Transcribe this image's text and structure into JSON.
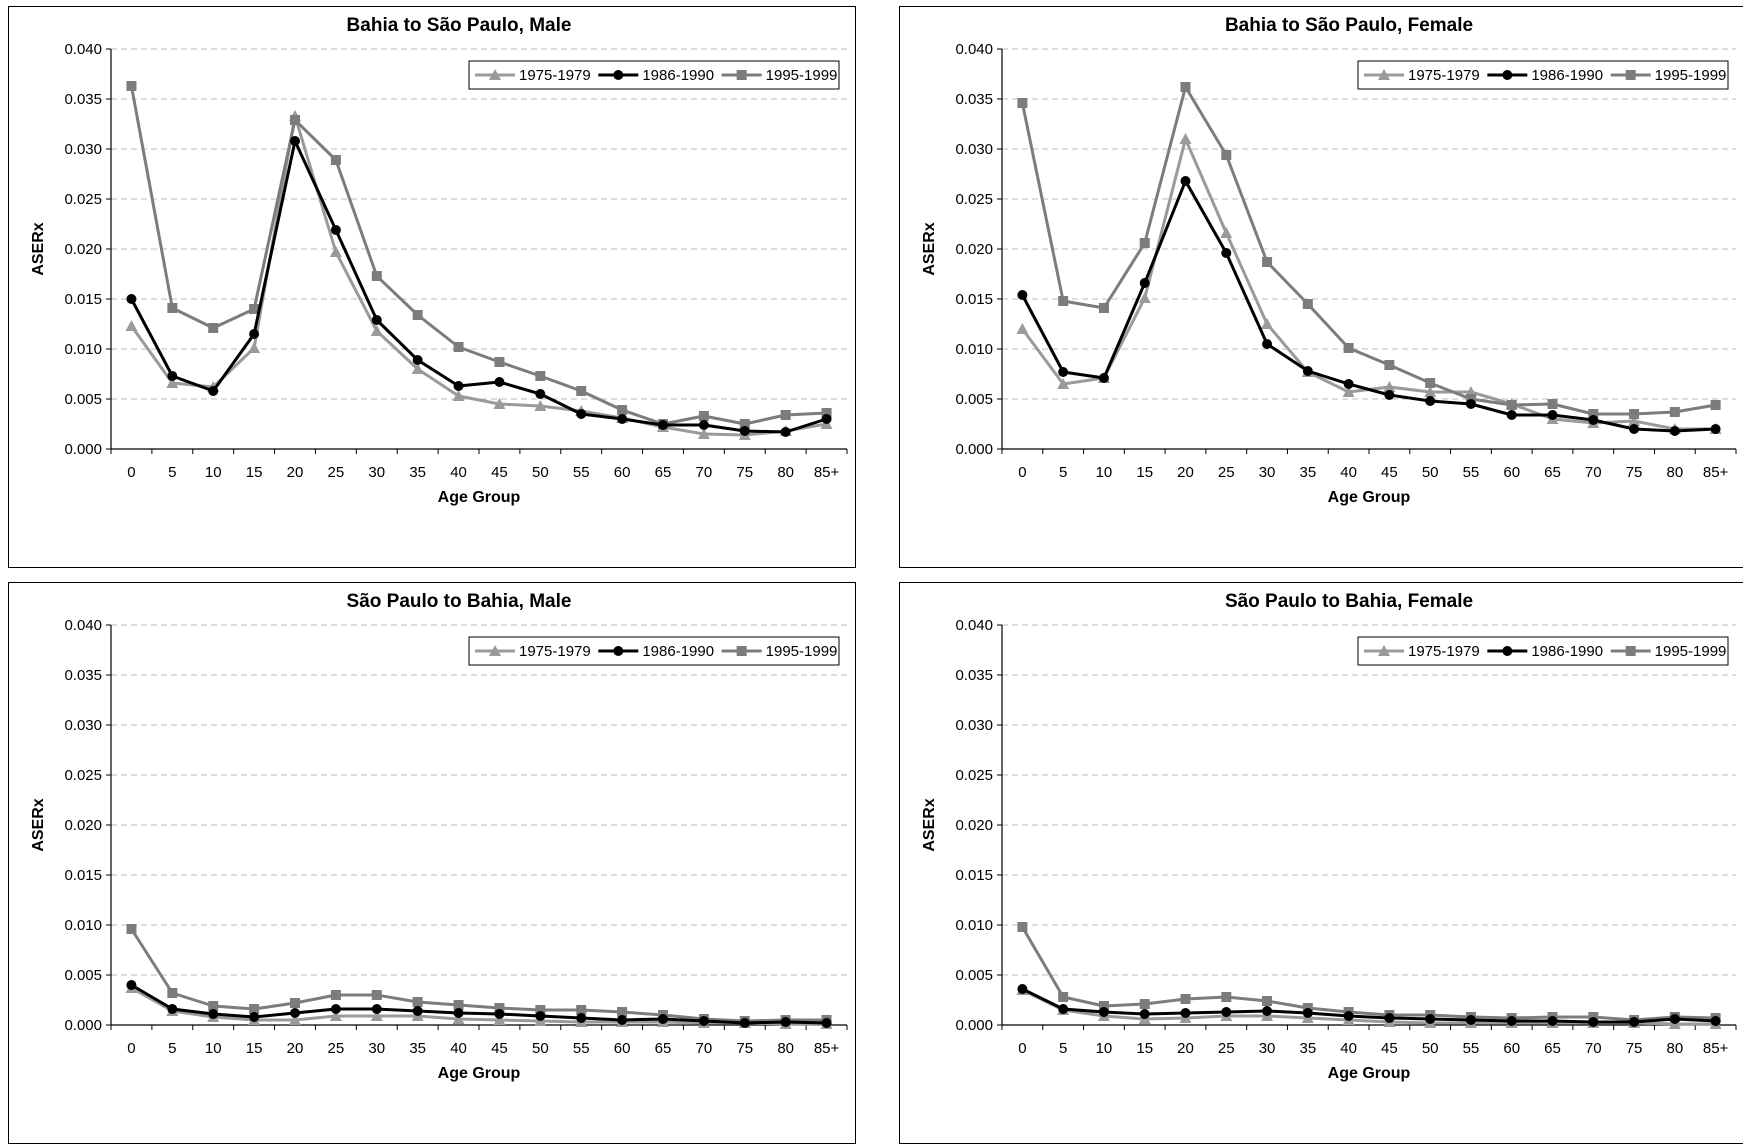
{
  "colors": {
    "1975-1979": "#9a9a9a",
    "1986-1990": "#000000",
    "1995-1999": "#7c7c7c",
    "grid": "#bdbdbd"
  },
  "chart_data": [
    {
      "type": "line",
      "title": "Bahia to São Paulo, Male",
      "xlabel": "Age Group",
      "ylabel": "ASERx",
      "ylim": [
        0,
        0.04
      ],
      "yticks": [
        "0.000",
        "0.005",
        "0.010",
        "0.015",
        "0.020",
        "0.025",
        "0.030",
        "0.035",
        "0.040"
      ],
      "categories": [
        "0",
        "5",
        "10",
        "15",
        "20",
        "25",
        "30",
        "35",
        "40",
        "45",
        "50",
        "55",
        "60",
        "65",
        "70",
        "75",
        "80",
        "85+"
      ],
      "grid": "horizontal dashed",
      "legend_position": "top-right",
      "series": [
        {
          "name": "1975-1979",
          "marker": "triangle",
          "values": [
            0.0123,
            0.0066,
            0.0062,
            0.0101,
            0.0333,
            0.0197,
            0.0118,
            0.008,
            0.0053,
            0.0045,
            0.0043,
            0.0038,
            0.0031,
            0.0022,
            0.0015,
            0.0014,
            0.0018,
            0.0025
          ]
        },
        {
          "name": "1986-1990",
          "marker": "circle",
          "values": [
            0.015,
            0.0073,
            0.0058,
            0.0115,
            0.0308,
            0.0219,
            0.0129,
            0.0089,
            0.0063,
            0.0067,
            0.0055,
            0.0035,
            0.003,
            0.0024,
            0.0024,
            0.0018,
            0.0017,
            0.003
          ]
        },
        {
          "name": "1995-1999",
          "marker": "square",
          "values": [
            0.0363,
            0.0141,
            0.0121,
            0.014,
            0.0329,
            0.0289,
            0.0173,
            0.0134,
            0.0102,
            0.0087,
            0.0073,
            0.0058,
            0.0039,
            0.0025,
            0.0033,
            0.0025,
            0.0034,
            0.0036
          ]
        }
      ]
    },
    {
      "type": "line",
      "title": "Bahia to São Paulo, Female",
      "xlabel": "Age Group",
      "ylabel": "ASERx",
      "ylim": [
        0,
        0.04
      ],
      "yticks": [
        "0.000",
        "0.005",
        "0.010",
        "0.015",
        "0.020",
        "0.025",
        "0.030",
        "0.035",
        "0.040"
      ],
      "categories": [
        "0",
        "5",
        "10",
        "15",
        "20",
        "25",
        "30",
        "35",
        "40",
        "45",
        "50",
        "55",
        "60",
        "65",
        "70",
        "75",
        "80",
        "85+"
      ],
      "grid": "horizontal dashed",
      "legend_position": "top-right",
      "series": [
        {
          "name": "1975-1979",
          "marker": "triangle",
          "values": [
            0.012,
            0.0065,
            0.0071,
            0.0151,
            0.031,
            0.0216,
            0.0125,
            0.0077,
            0.0057,
            0.0062,
            0.0057,
            0.0057,
            0.0045,
            0.003,
            0.0026,
            0.0028,
            0.002,
            0.002
          ]
        },
        {
          "name": "1986-1990",
          "marker": "circle",
          "values": [
            0.0154,
            0.0077,
            0.0071,
            0.0166,
            0.0268,
            0.0196,
            0.0105,
            0.0078,
            0.0065,
            0.0054,
            0.0048,
            0.0045,
            0.0034,
            0.0034,
            0.0029,
            0.002,
            0.0018,
            0.002
          ]
        },
        {
          "name": "1995-1999",
          "marker": "square",
          "values": [
            0.0346,
            0.0148,
            0.0141,
            0.0206,
            0.0362,
            0.0294,
            0.0187,
            0.0145,
            0.0101,
            0.0084,
            0.0066,
            0.005,
            0.0044,
            0.0045,
            0.0035,
            0.0035,
            0.0037,
            0.0044
          ]
        }
      ]
    },
    {
      "type": "line",
      "title": "São Paulo to Bahia, Male",
      "xlabel": "Age Group",
      "ylabel": "ASERx",
      "ylim": [
        0,
        0.04
      ],
      "yticks": [
        "0.000",
        "0.005",
        "0.010",
        "0.015",
        "0.020",
        "0.025",
        "0.030",
        "0.035",
        "0.040"
      ],
      "categories": [
        "0",
        "5",
        "10",
        "15",
        "20",
        "25",
        "30",
        "35",
        "40",
        "45",
        "50",
        "55",
        "60",
        "65",
        "70",
        "75",
        "80",
        "85+"
      ],
      "grid": "horizontal dashed",
      "legend_position": "top-right",
      "series": [
        {
          "name": "1975-1979",
          "marker": "triangle",
          "values": [
            0.0037,
            0.0014,
            0.0008,
            0.0005,
            0.0005,
            0.0009,
            0.0009,
            0.0009,
            0.0006,
            0.0005,
            0.0004,
            0.0003,
            0.0003,
            0.0003,
            0.0002,
            0.0002,
            0.0001,
            0.0001
          ]
        },
        {
          "name": "1986-1990",
          "marker": "circle",
          "values": [
            0.004,
            0.0016,
            0.0011,
            0.0008,
            0.0012,
            0.0016,
            0.0016,
            0.0014,
            0.0012,
            0.0011,
            0.0009,
            0.0007,
            0.0005,
            0.0006,
            0.0004,
            0.0002,
            0.0003,
            0.0002
          ]
        },
        {
          "name": "1995-1999",
          "marker": "square",
          "values": [
            0.0096,
            0.0032,
            0.0019,
            0.0016,
            0.0022,
            0.003,
            0.003,
            0.0023,
            0.002,
            0.0017,
            0.0015,
            0.0015,
            0.0013,
            0.001,
            0.0006,
            0.0004,
            0.0005,
            0.0005
          ]
        }
      ]
    },
    {
      "type": "line",
      "title": "São Paulo to Bahia, Female",
      "xlabel": "Age Group",
      "ylabel": "ASERx",
      "ylim": [
        0,
        0.04
      ],
      "yticks": [
        "0.000",
        "0.005",
        "0.010",
        "0.015",
        "0.020",
        "0.025",
        "0.030",
        "0.035",
        "0.040"
      ],
      "categories": [
        "0",
        "5",
        "10",
        "15",
        "20",
        "25",
        "30",
        "35",
        "40",
        "45",
        "50",
        "55",
        "60",
        "65",
        "70",
        "75",
        "80",
        "85+"
      ],
      "grid": "horizontal dashed",
      "legend_position": "top-right",
      "series": [
        {
          "name": "1975-1979",
          "marker": "triangle",
          "values": [
            0.0035,
            0.0015,
            0.0009,
            0.0006,
            0.0007,
            0.0009,
            0.0009,
            0.0007,
            0.0005,
            0.0003,
            0.0002,
            0.0002,
            0.0002,
            0.0002,
            0.0002,
            0.0002,
            0.0001,
            0.0001
          ]
        },
        {
          "name": "1986-1990",
          "marker": "circle",
          "values": [
            0.0036,
            0.0016,
            0.0013,
            0.0011,
            0.0012,
            0.0013,
            0.0014,
            0.0012,
            0.0009,
            0.0007,
            0.0006,
            0.0005,
            0.0004,
            0.0004,
            0.0003,
            0.0003,
            0.0006,
            0.0004
          ]
        },
        {
          "name": "1995-1999",
          "marker": "square",
          "values": [
            0.0098,
            0.0028,
            0.0019,
            0.0021,
            0.0026,
            0.0028,
            0.0024,
            0.0017,
            0.0013,
            0.001,
            0.001,
            0.0008,
            0.0007,
            0.0008,
            0.0008,
            0.0005,
            0.0008,
            0.0007
          ]
        }
      ]
    }
  ]
}
